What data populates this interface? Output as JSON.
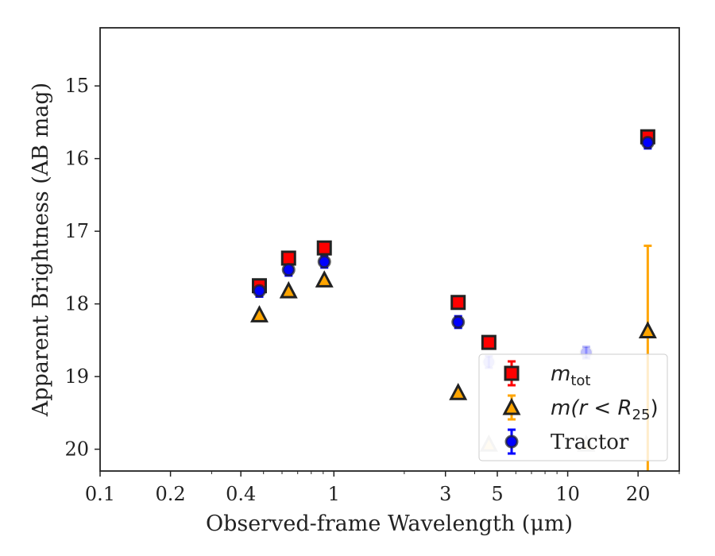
{
  "chart_data": {
    "type": "scatter",
    "title": "",
    "xlabel": "Observed-frame Wavelength (μm)",
    "ylabel": "Apparent Brightness (AB mag)",
    "xscale": "log",
    "xlim": [
      0.1,
      30
    ],
    "ylim": [
      20.3,
      14.2
    ],
    "y_inverted": true,
    "x_ticks": [
      0.1,
      0.2,
      0.4,
      1,
      3,
      5,
      10,
      20
    ],
    "x_tick_labels": [
      "0.1",
      "0.2",
      "0.4",
      "1",
      "3",
      "5",
      "10",
      "20"
    ],
    "y_ticks": [
      15,
      16,
      17,
      18,
      19,
      20
    ],
    "y_tick_labels": [
      "15",
      "16",
      "17",
      "18",
      "19",
      "20"
    ],
    "legend_placement": "lower-right",
    "series": [
      {
        "name": "m_tot",
        "legend_main": "m",
        "legend_sub": "tot",
        "marker": "square",
        "fill": "#ff0000",
        "points": [
          {
            "x": 0.48,
            "y": 17.75,
            "err": 0.05
          },
          {
            "x": 0.64,
            "y": 17.37,
            "err": 0.05
          },
          {
            "x": 0.91,
            "y": 17.23,
            "err": 0.05
          },
          {
            "x": 3.4,
            "y": 17.98,
            "err": 0.06
          },
          {
            "x": 4.6,
            "y": 18.53,
            "err": 0.05
          },
          {
            "x": 22.0,
            "y": 15.7,
            "err": 0.05
          }
        ]
      },
      {
        "name": "m(r < R25)",
        "legend_main": "m(r < R",
        "legend_sub": "25",
        "legend_end": ")",
        "marker": "triangle",
        "fill": "#ffa500",
        "points": [
          {
            "x": 0.48,
            "y": 18.15,
            "err": 0
          },
          {
            "x": 0.64,
            "y": 17.82,
            "err": 0
          },
          {
            "x": 0.91,
            "y": 17.67,
            "err": 0
          },
          {
            "x": 3.4,
            "y": 19.22,
            "err": 0
          },
          {
            "x": 4.6,
            "y": 19.93,
            "err": 0,
            "faded": true
          },
          {
            "x": 12.0,
            "y": 19.93,
            "err": 0,
            "faded": true
          },
          {
            "x": 22.0,
            "y": 18.37,
            "err_low": 1.17,
            "err_high": 2.2
          }
        ]
      },
      {
        "name": "Tractor",
        "legend_main": "Tractor",
        "marker": "circle",
        "fill": "#0000ff",
        "points": [
          {
            "x": 0.48,
            "y": 17.82,
            "err": 0.08
          },
          {
            "x": 0.64,
            "y": 17.53,
            "err": 0.08
          },
          {
            "x": 0.91,
            "y": 17.42,
            "err": 0.08
          },
          {
            "x": 3.4,
            "y": 18.25,
            "err": 0.08
          },
          {
            "x": 4.6,
            "y": 18.8,
            "err": 0.08,
            "faded": true
          },
          {
            "x": 12.0,
            "y": 18.67,
            "err": 0.08,
            "faded": true
          },
          {
            "x": 22.0,
            "y": 15.78,
            "err": 0.08
          }
        ]
      }
    ],
    "colors": {
      "frame": "#222222",
      "errorbar_mtot": "#ff0000",
      "errorbar_r25": "#ffa500",
      "errorbar_tractor": "#0000ff"
    }
  }
}
